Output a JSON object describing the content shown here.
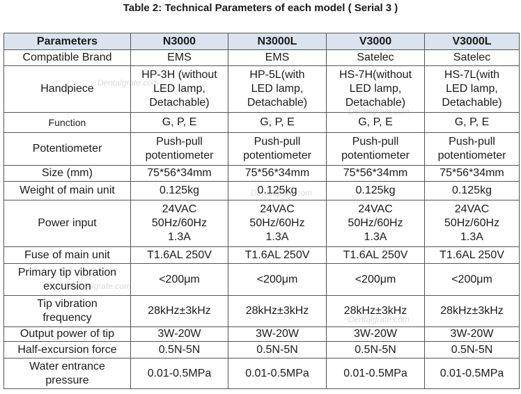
{
  "title": "Table 2: Technical Parameters of each model ( Serial  3 )",
  "watermark": "Dentalgrate.com",
  "table": {
    "header": [
      "Parameters",
      "N3000",
      "N3000L",
      "V3000",
      "V3000L"
    ],
    "rows": [
      [
        "Compatible Brand",
        "EMS",
        "EMS",
        "Satelec",
        "Satelec"
      ],
      [
        "Handpiece",
        "HP-3H (without\nLED lamp,\nDetachable)",
        "HP-5L(with\nLED lamp,\nDetachable)",
        "HS-7H(without\nLED lamp,\nDetachable)",
        "HS-7L(with\nLED lamp,\nDetachable)"
      ],
      [
        "Function",
        "G, P, E",
        "G, P, E",
        "G, P, E",
        "G, P, E"
      ],
      [
        "Potentiometer",
        "Push-pull\npotentiometer",
        "Push-pull\npotentiometer",
        "Push-pull\npotentiometer",
        "Push-pull\npotentiometer"
      ],
      [
        "Size (mm)",
        "75*56*34mm",
        "75*56*34mm",
        "75*56*34mm",
        "75*56*34mm"
      ],
      [
        "Weight of main unit",
        "0.125kg",
        "0.125kg",
        "0.125kg",
        "0.125kg"
      ],
      [
        "Power input",
        "24VAC\n50Hz/60Hz\n1.3A",
        "24VAC\n50Hz/60Hz\n1.3A",
        "24VAC\n50Hz/60Hz\n1.3A",
        "24VAC\n50Hz/60Hz\n1.3A"
      ],
      [
        "Fuse of main unit",
        "T1.6AL 250V",
        "T1.6AL 250V",
        "T1.6AL 250V",
        "T1.6AL 250V"
      ],
      [
        "Primary tip vibration\nexcursion",
        "<200μm",
        "<200μm",
        "<200μm",
        "<200μm"
      ],
      [
        "Tip vibration\nfrequency",
        "28kHz±3kHz",
        "28kHz±3kHz",
        "28kHz±3kHz",
        "28kHz±3kHz"
      ],
      [
        "Output power of tip",
        "3W-20W",
        "3W-20W",
        "3W-20W",
        "3W-20W"
      ],
      [
        "Half-excursion force",
        "0.5N-5N",
        "0.5N-5N",
        "0.5N-5N",
        "0.5N-5N"
      ],
      [
        "Water entrance\npressure",
        "0.01-0.5MPa",
        "0.01-0.5MPa",
        "0.01-0.5MPa",
        "0.01-0.5MPa"
      ]
    ]
  }
}
